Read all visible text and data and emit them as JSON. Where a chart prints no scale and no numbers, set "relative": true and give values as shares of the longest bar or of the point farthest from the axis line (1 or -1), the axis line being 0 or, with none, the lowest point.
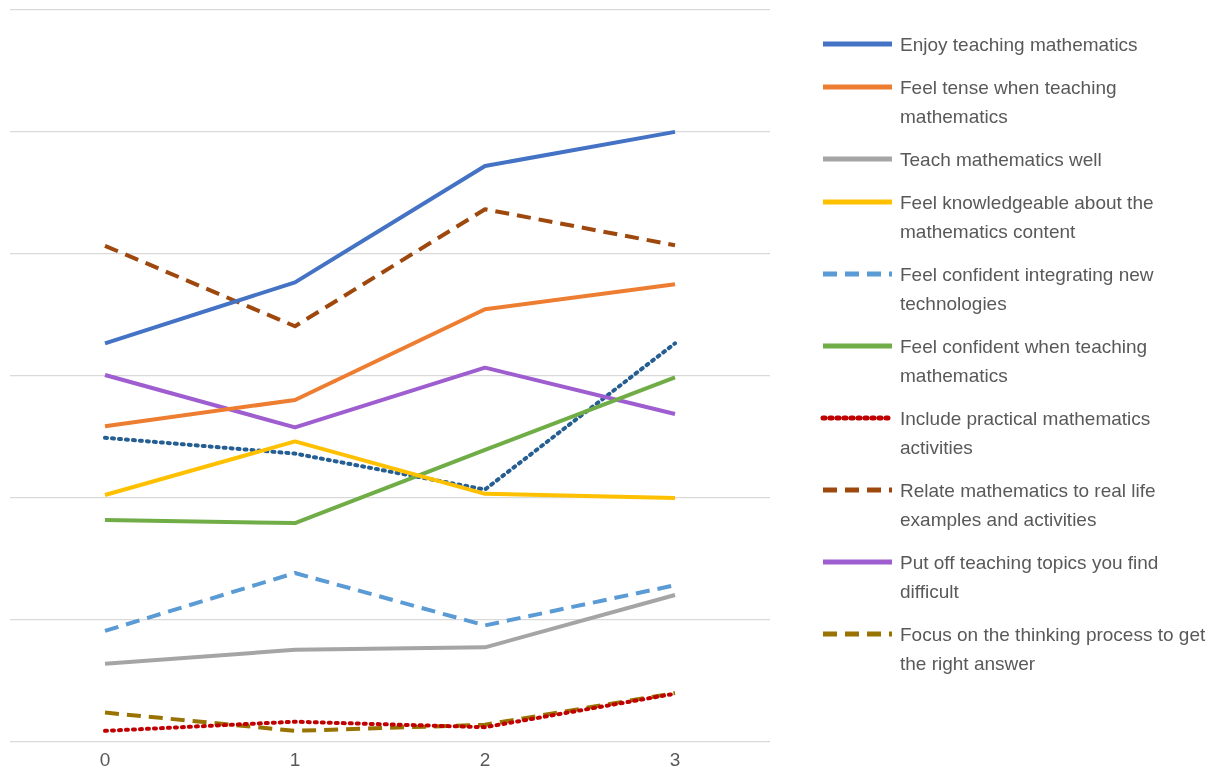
{
  "chart_data": {
    "type": "line",
    "relative": true,
    "categories": [
      "0",
      "1",
      "2",
      "3"
    ],
    "grid": "y",
    "legend": "right",
    "marker": "none",
    "series": [
      {
        "name": "Enjoy teaching mathematics",
        "color": "#4472c4",
        "line_style": "solid",
        "values": [
          0.653,
          0.753,
          0.944,
          1
        ]
      },
      {
        "name": "Feel tense when teaching mathematics",
        "color": "#ed7d31",
        "line_style": "solid",
        "values": [
          0.517,
          0.56,
          0.709,
          0.75
        ]
      },
      {
        "name": "Teach mathematics well",
        "color": "#a5a5a5",
        "line_style": "solid",
        "values": [
          0.127,
          0.15,
          0.154,
          0.24
        ]
      },
      {
        "name": "Feel knowledgeable about the mathematics content",
        "color": "#ffc000",
        "line_style": "solid",
        "values": [
          0.404,
          0.492,
          0.406,
          0.399
        ]
      },
      {
        "name": "Feel confident integrating new technologies",
        "color": "#5b9bd5",
        "line_style": "dashed",
        "values": [
          0.181,
          0.276,
          0.19,
          0.256
        ]
      },
      {
        "name": "Feel confident when teaching mathematics",
        "color": "#70ad47",
        "line_style": "solid",
        "values": [
          0.363,
          0.358,
          0.478,
          0.597
        ]
      },
      {
        "name": "Include practical mathematics activities",
        "color": "#c00000",
        "line_style": "dotted",
        "values": [
          0.017,
          0.032,
          0.023,
          0.078
        ]
      },
      {
        "name": "Relate mathematics to real life examples and activities",
        "color": "#9e480e",
        "line_style": "dashed",
        "values": [
          0.813,
          0.681,
          0.873,
          0.814
        ]
      },
      {
        "name": "Put off teaching topics you find difficult",
        "color": "#9e5ecf",
        "line_style": "solid",
        "values": [
          0.601,
          0.515,
          0.613,
          0.537
        ]
      },
      {
        "name": "Focus on the thinking process to get the right answer",
        "color": "#997300",
        "line_style": "dashed",
        "values": [
          0.047,
          0.017,
          0.027,
          0.079
        ]
      },
      {
        "color": "#255e91",
        "line_style": "dotted",
        "values": [
          0.498,
          0.472,
          0.413,
          0.653
        ]
      }
    ]
  }
}
